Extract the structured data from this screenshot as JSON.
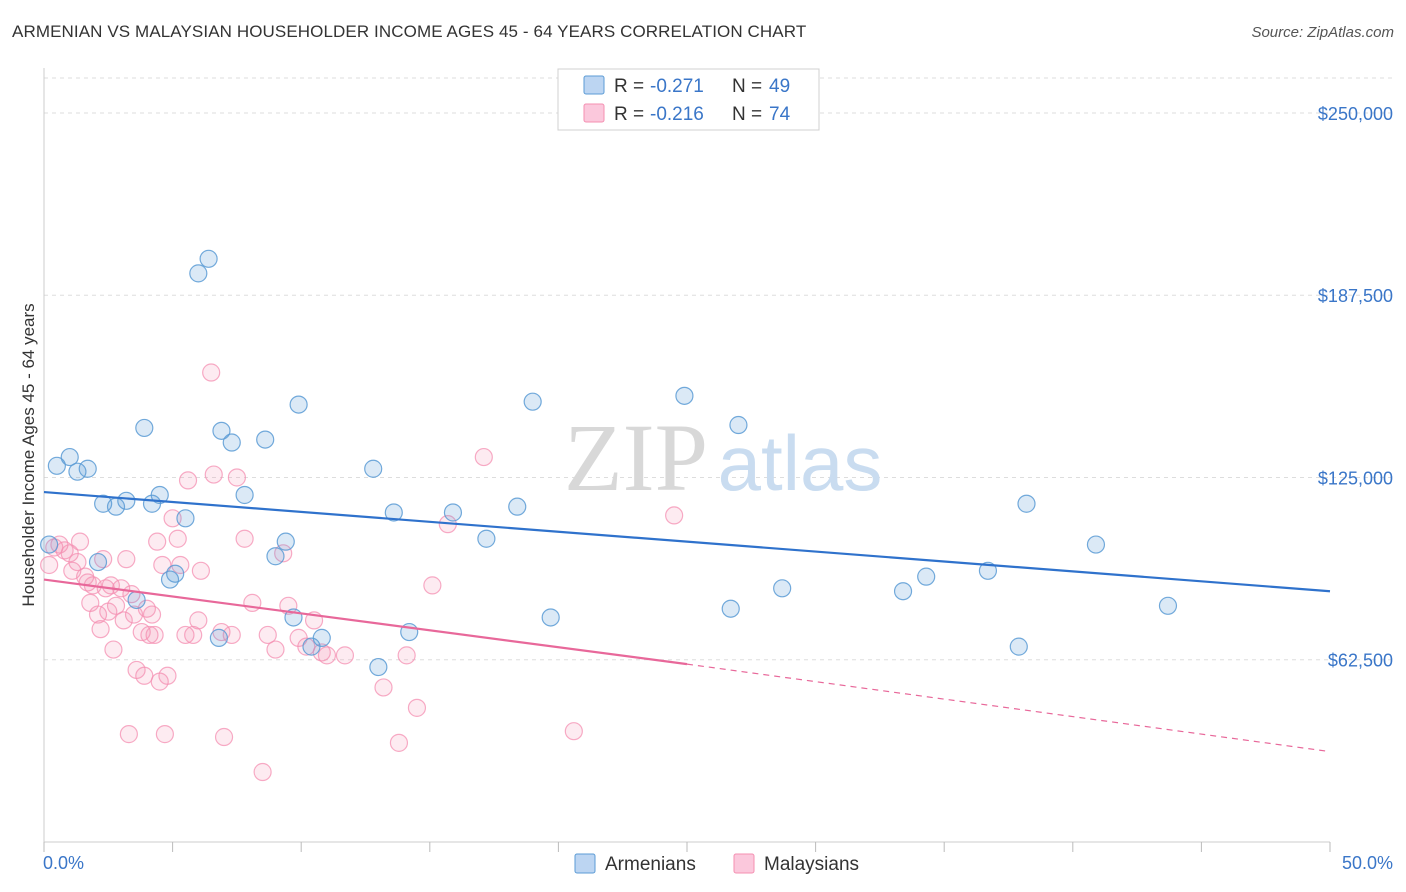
{
  "header": {
    "title": "ARMENIAN VS MALAYSIAN HOUSEHOLDER INCOME AGES 45 - 64 YEARS CORRELATION CHART",
    "source": "Source: ZipAtlas.com"
  },
  "watermark": {
    "zip": "ZIP",
    "atlas": "atlas"
  },
  "legend_top": [
    {
      "r_label": "R =",
      "r_value": "-0.271",
      "n_label": "N =",
      "n_value": "49",
      "color": "#5b9bd5"
    },
    {
      "r_label": "R =",
      "r_value": "-0.216",
      "n_label": "N =",
      "n_value": "74",
      "color": "#f48fb1"
    }
  ],
  "legend_bottom": [
    {
      "label": "Armenians",
      "color": "#5b9bd5"
    },
    {
      "label": "Malaysians",
      "color": "#f48fb1"
    }
  ],
  "chart_data": {
    "type": "scatter",
    "title": "ARMENIAN VS MALAYSIAN HOUSEHOLDER INCOME AGES 45 - 64 YEARS CORRELATION CHART",
    "xlabel": "",
    "ylabel": "Householder Income Ages 45 - 64 years",
    "xlim": [
      0,
      50
    ],
    "ylim": [
      0,
      262000
    ],
    "x_tick_labels": [
      "0.0%",
      "50.0%"
    ],
    "y_ticks": [
      62500,
      125000,
      187500,
      250000
    ],
    "y_tick_labels": [
      "$62,500",
      "$125,000",
      "$187,500",
      "$250,000"
    ],
    "grid": true,
    "legend_position": "top-center and bottom-center",
    "series": [
      {
        "name": "Armenians",
        "color": "#5b9bd5",
        "trend": {
          "x0": 0,
          "y0": 120000,
          "x1": 50,
          "y1": 86000,
          "extrapolate_from": null
        },
        "points": [
          [
            0.2,
            102000
          ],
          [
            0.5,
            129000
          ],
          [
            1.0,
            132000
          ],
          [
            1.3,
            127000
          ],
          [
            1.7,
            128000
          ],
          [
            2.1,
            96000
          ],
          [
            2.3,
            116000
          ],
          [
            2.8,
            115000
          ],
          [
            3.2,
            117000
          ],
          [
            3.6,
            83000
          ],
          [
            3.9,
            142000
          ],
          [
            4.2,
            116000
          ],
          [
            4.5,
            119000
          ],
          [
            4.9,
            90000
          ],
          [
            5.1,
            92000
          ],
          [
            5.5,
            111000
          ],
          [
            6.0,
            195000
          ],
          [
            6.4,
            200000
          ],
          [
            6.8,
            70000
          ],
          [
            6.9,
            141000
          ],
          [
            7.3,
            137000
          ],
          [
            7.8,
            119000
          ],
          [
            8.6,
            138000
          ],
          [
            9.0,
            98000
          ],
          [
            9.4,
            103000
          ],
          [
            9.7,
            77000
          ],
          [
            9.9,
            150000
          ],
          [
            10.4,
            67000
          ],
          [
            10.8,
            70000
          ],
          [
            12.8,
            128000
          ],
          [
            13.0,
            60000
          ],
          [
            13.6,
            113000
          ],
          [
            14.2,
            72000
          ],
          [
            15.9,
            113000
          ],
          [
            17.2,
            104000
          ],
          [
            18.4,
            115000
          ],
          [
            19.0,
            151000
          ],
          [
            19.7,
            77000
          ],
          [
            24.9,
            153000
          ],
          [
            26.7,
            80000
          ],
          [
            27.0,
            143000
          ],
          [
            28.7,
            87000
          ],
          [
            33.4,
            86000
          ],
          [
            34.3,
            91000
          ],
          [
            36.7,
            93000
          ],
          [
            37.9,
            67000
          ],
          [
            38.2,
            116000
          ],
          [
            40.9,
            102000
          ],
          [
            43.7,
            81000
          ]
        ]
      },
      {
        "name": "Malaysians",
        "color": "#f48fb1",
        "trend": {
          "x0": 0,
          "y0": 90000,
          "x1": 25,
          "y1": 61000,
          "dash_x1": 50,
          "dash_y1": 31000
        },
        "points": [
          [
            0.2,
            95000
          ],
          [
            0.4,
            101000
          ],
          [
            0.6,
            102000
          ],
          [
            0.8,
            100000
          ],
          [
            1.0,
            99000
          ],
          [
            1.1,
            93000
          ],
          [
            1.3,
            96000
          ],
          [
            1.4,
            103000
          ],
          [
            1.6,
            91000
          ],
          [
            1.7,
            89000
          ],
          [
            1.8,
            82000
          ],
          [
            1.9,
            88000
          ],
          [
            2.1,
            78000
          ],
          [
            2.2,
            73000
          ],
          [
            2.3,
            97000
          ],
          [
            2.4,
            87000
          ],
          [
            2.5,
            79000
          ],
          [
            2.6,
            88000
          ],
          [
            2.7,
            66000
          ],
          [
            2.8,
            81000
          ],
          [
            3.0,
            87000
          ],
          [
            3.1,
            76000
          ],
          [
            3.2,
            97000
          ],
          [
            3.3,
            37000
          ],
          [
            3.4,
            85000
          ],
          [
            3.5,
            78000
          ],
          [
            3.6,
            59000
          ],
          [
            3.8,
            72000
          ],
          [
            3.9,
            57000
          ],
          [
            4.0,
            80000
          ],
          [
            4.1,
            71000
          ],
          [
            4.2,
            78000
          ],
          [
            4.3,
            71000
          ],
          [
            4.4,
            103000
          ],
          [
            4.5,
            55000
          ],
          [
            4.6,
            95000
          ],
          [
            4.7,
            37000
          ],
          [
            4.8,
            57000
          ],
          [
            5.0,
            111000
          ],
          [
            5.2,
            104000
          ],
          [
            5.3,
            95000
          ],
          [
            5.5,
            71000
          ],
          [
            5.6,
            124000
          ],
          [
            5.8,
            71000
          ],
          [
            6.0,
            76000
          ],
          [
            6.1,
            93000
          ],
          [
            6.5,
            161000
          ],
          [
            6.6,
            126000
          ],
          [
            6.9,
            72000
          ],
          [
            7.0,
            36000
          ],
          [
            7.3,
            71000
          ],
          [
            7.5,
            125000
          ],
          [
            7.8,
            104000
          ],
          [
            8.1,
            82000
          ],
          [
            8.5,
            24000
          ],
          [
            8.7,
            71000
          ],
          [
            9.0,
            66000
          ],
          [
            9.3,
            99000
          ],
          [
            9.5,
            81000
          ],
          [
            9.9,
            70000
          ],
          [
            10.2,
            67000
          ],
          [
            10.5,
            76000
          ],
          [
            10.8,
            65000
          ],
          [
            11.0,
            64000
          ],
          [
            11.7,
            64000
          ],
          [
            13.2,
            53000
          ],
          [
            13.8,
            34000
          ],
          [
            14.1,
            64000
          ],
          [
            14.5,
            46000
          ],
          [
            15.1,
            88000
          ],
          [
            15.7,
            109000
          ],
          [
            17.1,
            132000
          ],
          [
            20.6,
            38000
          ],
          [
            24.5,
            112000
          ]
        ]
      }
    ]
  }
}
